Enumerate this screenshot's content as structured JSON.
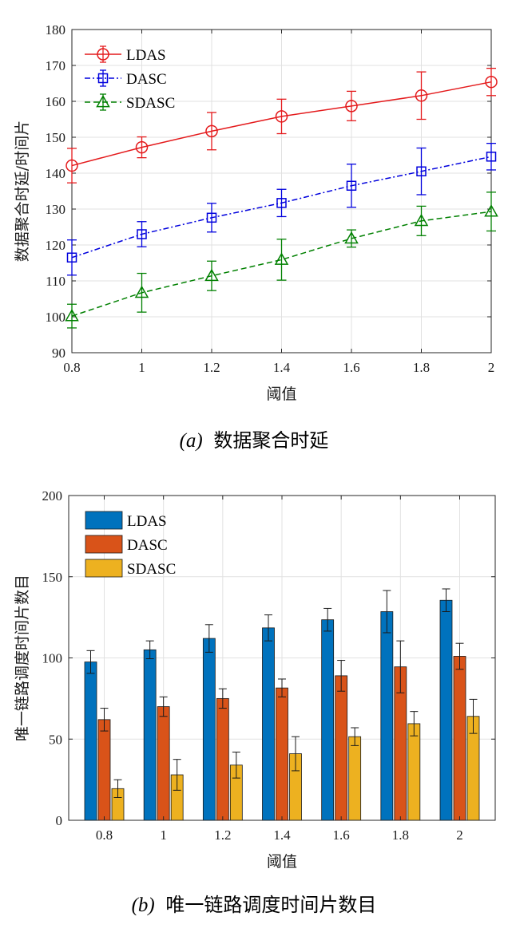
{
  "chart_data": [
    {
      "type": "line",
      "xlabel": "阈值",
      "ylabel": "数据聚合时延/时间片",
      "caption_prefix": "(a)",
      "caption_text": "数据聚合时延",
      "x": [
        0.8,
        1,
        1.2,
        1.4,
        1.6,
        1.8,
        2
      ],
      "xlim": [
        0.8,
        2
      ],
      "ylim": [
        90,
        180
      ],
      "xticks": [
        "0.8",
        "1",
        "1.2",
        "1.4",
        "1.6",
        "1.8",
        "2"
      ],
      "yticks": [
        "90",
        "100",
        "110",
        "120",
        "130",
        "140",
        "150",
        "160",
        "170",
        "180"
      ],
      "grid": true,
      "legend_position": "top-left",
      "series": [
        {
          "name": "LDAS",
          "color": "#e41a1c",
          "marker": "circle",
          "dash": "solid",
          "values": [
            142.1,
            147.2,
            151.7,
            155.8,
            158.7,
            161.6,
            165.4
          ],
          "error": [
            4.8,
            2.9,
            5.2,
            4.8,
            4.1,
            6.6,
            3.8
          ]
        },
        {
          "name": "DASC",
          "color": "#0000dd",
          "marker": "square",
          "dash": "dashdot",
          "values": [
            116.5,
            123.0,
            127.6,
            131.7,
            136.5,
            140.5,
            144.6
          ],
          "error": [
            4.9,
            3.5,
            4.0,
            3.8,
            6.0,
            6.5,
            3.7
          ]
        },
        {
          "name": "SDASC",
          "color": "#008000",
          "marker": "triangle",
          "dash": "dashed",
          "values": [
            100.2,
            106.7,
            111.4,
            115.9,
            121.8,
            126.7,
            129.3
          ],
          "error": [
            3.3,
            5.4,
            4.1,
            5.7,
            2.4,
            4.1,
            5.4
          ]
        }
      ]
    },
    {
      "type": "bar",
      "xlabel": "阈值",
      "ylabel": "唯一链路调度时间片数目",
      "caption_prefix": "(b)",
      "caption_text": "唯一链路调度时间片数目",
      "categories": [
        "0.8",
        "1",
        "1.2",
        "1.4",
        "1.6",
        "1.8",
        "2"
      ],
      "ylim": [
        0,
        200
      ],
      "yticks": [
        "0",
        "50",
        "100",
        "150",
        "200"
      ],
      "grid": true,
      "legend_position": "top-left",
      "series": [
        {
          "name": "LDAS",
          "color": "#0072bd",
          "values": [
            97.5,
            105,
            112,
            118.5,
            123.5,
            128.5,
            135.5
          ],
          "error": [
            7,
            5.5,
            8.5,
            8,
            7,
            13,
            7
          ]
        },
        {
          "name": "DASC",
          "color": "#d95319",
          "values": [
            62,
            70,
            75,
            81.5,
            89,
            94.5,
            101
          ],
          "error": [
            7,
            6,
            6,
            5.5,
            9.5,
            16,
            8
          ]
        },
        {
          "name": "SDASC",
          "color": "#edb120",
          "values": [
            19.5,
            28,
            34,
            41,
            51.5,
            59.5,
            64
          ],
          "error": [
            5.5,
            9.5,
            8,
            10.5,
            5.5,
            7.5,
            10.5
          ]
        }
      ]
    }
  ]
}
